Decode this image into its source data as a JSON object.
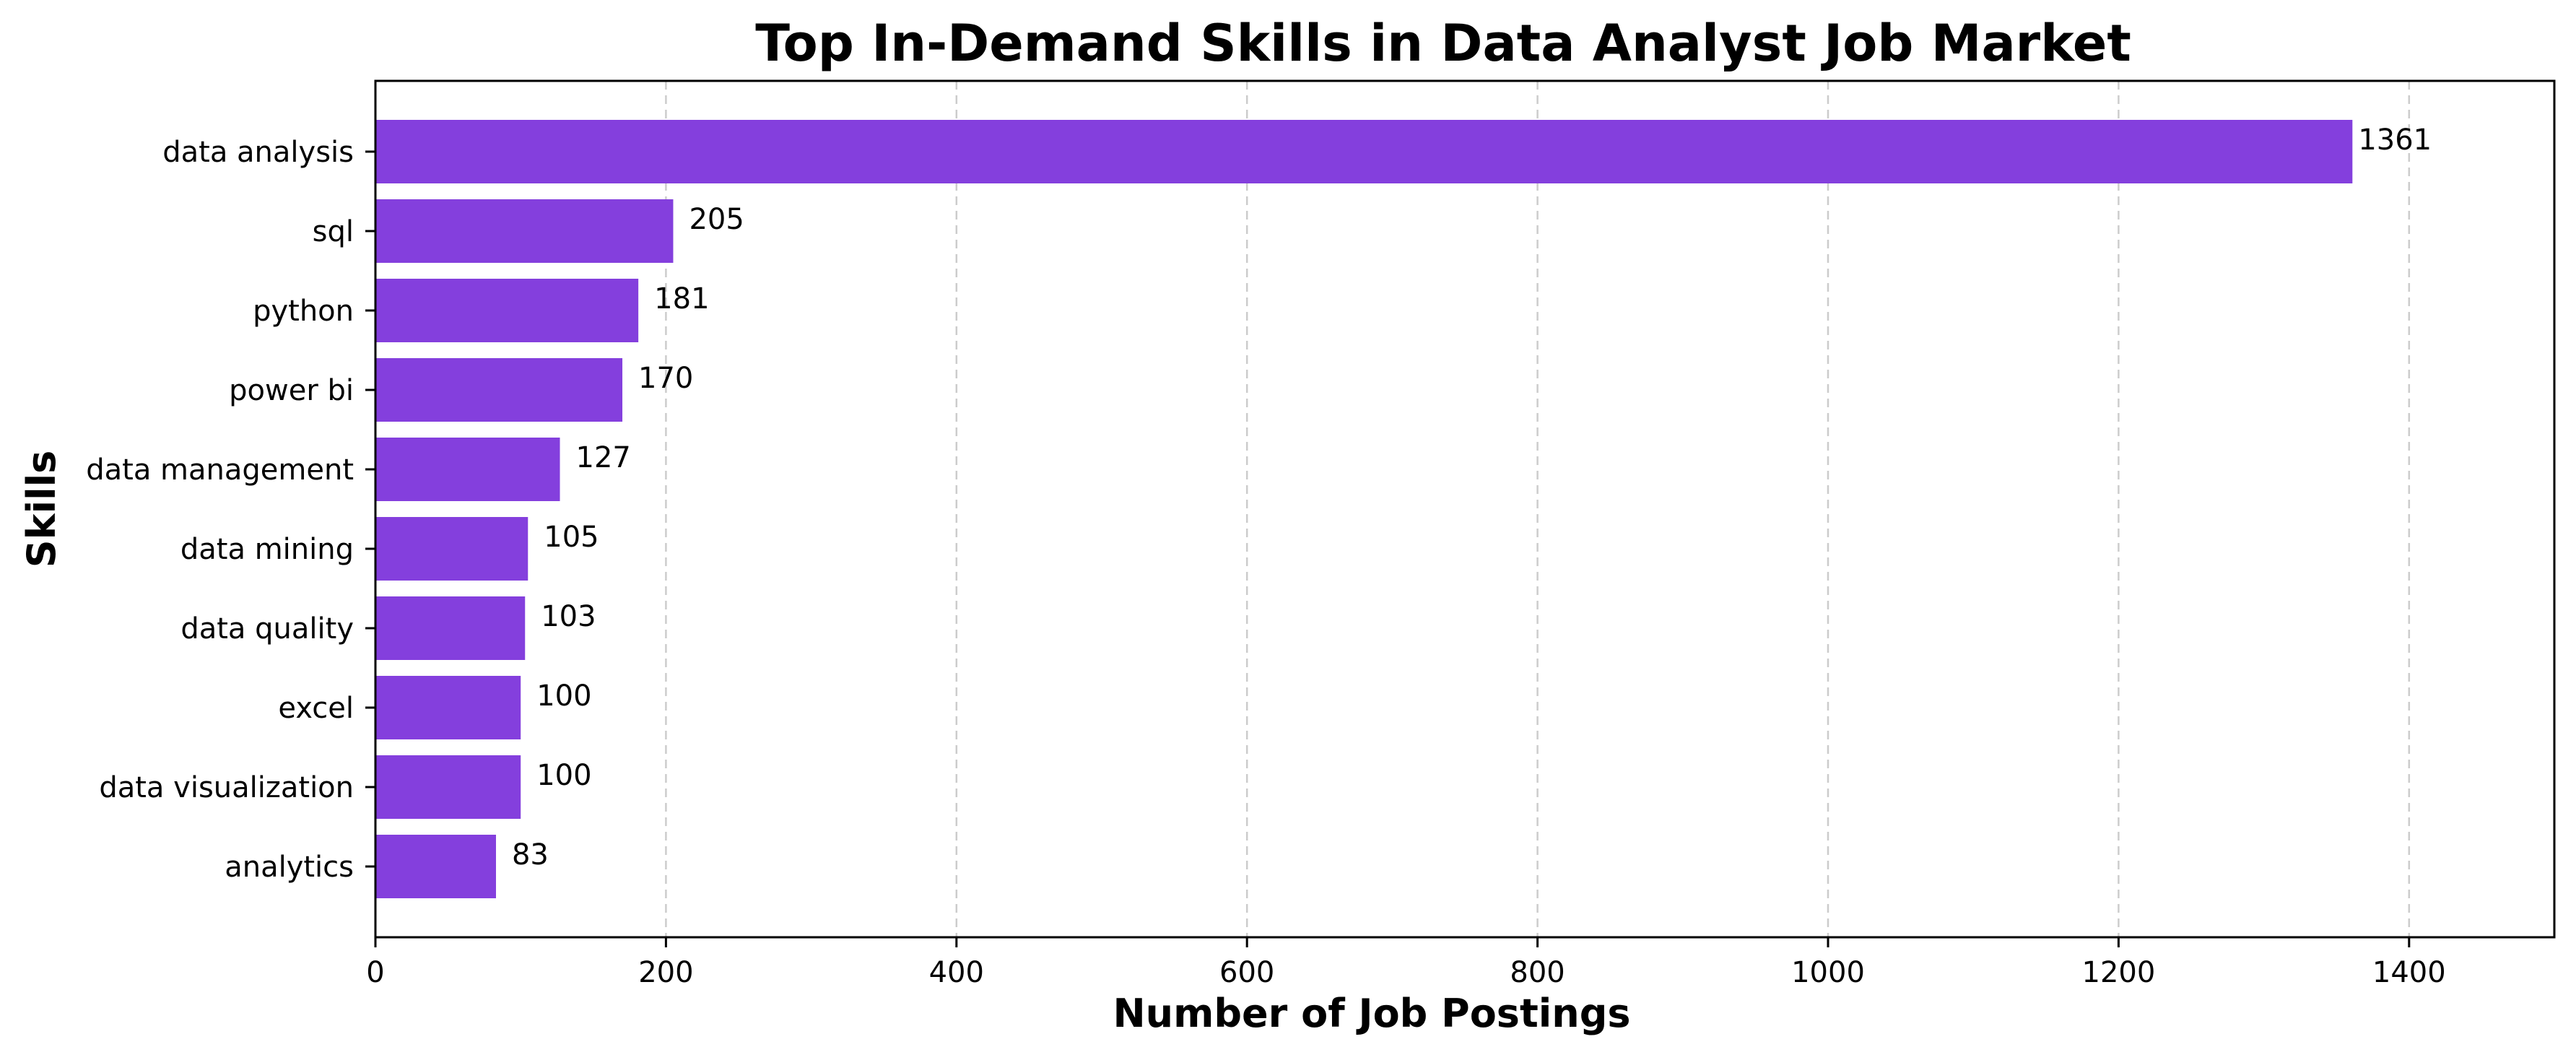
{
  "chart_data": {
    "type": "bar",
    "orientation": "horizontal",
    "title": "Top In-Demand Skills in Data Analyst Job Market",
    "xlabel": "Number of Job Postings",
    "ylabel": "Skills",
    "xlim": [
      0,
      1500
    ],
    "xticks": [
      0,
      200,
      400,
      600,
      800,
      1000,
      1200,
      1400
    ],
    "grid": "x-dashed",
    "bar_color": "#843fdd",
    "categories": [
      "data analysis",
      "sql",
      "python",
      "power bi",
      "data management",
      "data mining",
      "data quality",
      "excel",
      "data visualization",
      "analytics"
    ],
    "values": [
      1361,
      205,
      181,
      170,
      127,
      105,
      103,
      100,
      100,
      83
    ]
  }
}
